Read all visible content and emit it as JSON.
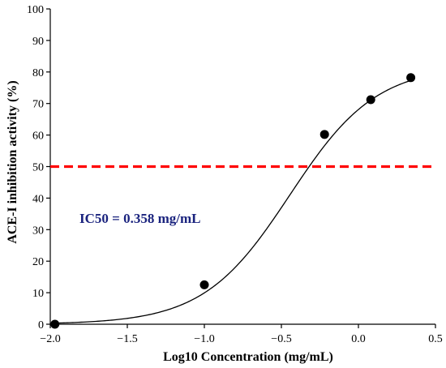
{
  "chart_data": {
    "type": "scatter",
    "xlabel": "Log10 Concentration (mg/mL)",
    "ylabel": "ACE-I inhibition activity (%)",
    "xlim": [
      -2.0,
      0.5
    ],
    "ylim": [
      0,
      100
    ],
    "x_ticks": [
      -2.0,
      -1.5,
      -1.0,
      -0.5,
      0.0,
      0.5
    ],
    "x_tick_labels": [
      "−2.0",
      "−1.5",
      "−1.0",
      "−0.5",
      "0.0",
      "0.5"
    ],
    "y_ticks": [
      0,
      10,
      20,
      30,
      40,
      50,
      60,
      70,
      80,
      90,
      100
    ],
    "y_tick_labels": [
      "0",
      "10",
      "20",
      "30",
      "40",
      "50",
      "60",
      "70",
      "80",
      "90",
      "100"
    ],
    "grid": false,
    "series": [
      {
        "x": [
          -1.97,
          -1.0,
          -0.22,
          0.08,
          0.34
        ],
        "y": [
          0,
          12.5,
          60.2,
          71.2,
          78.2
        ],
        "color": "#000000",
        "marker": "circle"
      }
    ],
    "fit_curve": {
      "model": "sigmoid",
      "bottom": 0,
      "top": 82,
      "log_ic50": -0.445,
      "hill_slope": 1.55,
      "color": "#000000"
    },
    "reference_line": {
      "y": 50,
      "color": "#ff0000",
      "style": "dashed"
    },
    "annotation": {
      "text": "IC50 = 0.358 mg/mL",
      "color": "#1a237e"
    }
  }
}
